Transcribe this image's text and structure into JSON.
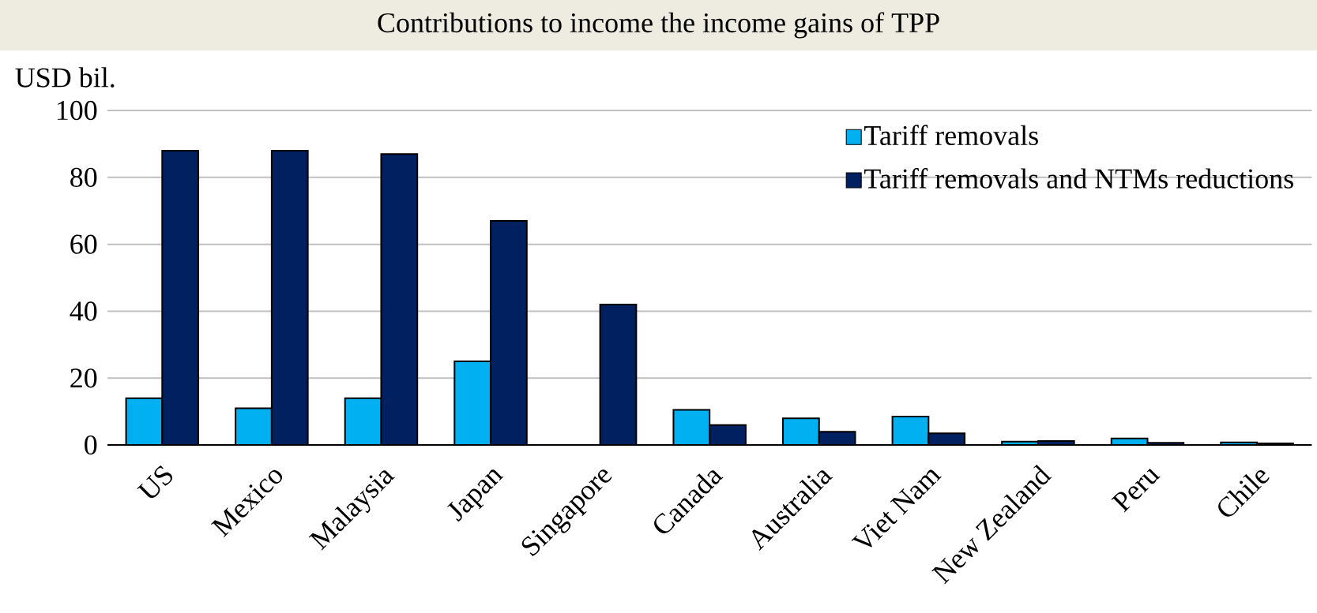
{
  "chart_data": {
    "type": "bar",
    "title": "Contributions to income the income gains of TPP",
    "ylabel": "USD bil.",
    "categories": [
      "US",
      "Mexico",
      "Malaysia",
      "Japan",
      "Singapore",
      "Canada",
      "Australia",
      "Viet Nam",
      "New Zealand",
      "Peru",
      "Chile"
    ],
    "series": [
      {
        "name": "Tariff removals",
        "color": "#00b0f0",
        "values": [
          14,
          11,
          14,
          25,
          null,
          10.5,
          8,
          8.5,
          1,
          2,
          0.8
        ]
      },
      {
        "name": "Tariff removals and NTMs reductions",
        "color": "#002060",
        "values": [
          88,
          88,
          87,
          67,
          42,
          6,
          4,
          3.5,
          1.2,
          0.7,
          0.5
        ]
      }
    ],
    "ylim": [
      0,
      100
    ],
    "yticks": [
      0,
      20,
      40,
      60,
      80,
      100
    ],
    "grid": "y",
    "legend": "top right"
  }
}
